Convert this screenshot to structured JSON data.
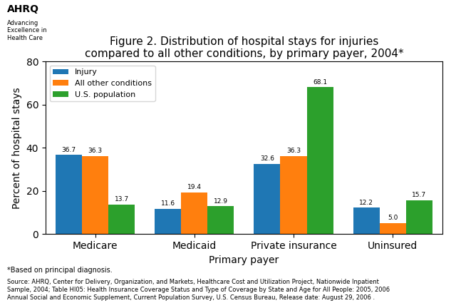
{
  "chart_data": {
    "type": "bar",
    "title": "Figure 2. Distribution of hospital stays for injuries\ncompared to all other conditions, by primary payer, 2004*",
    "categories": [
      "Medicare",
      "Medicaid",
      "Private insurance",
      "Uninsured"
    ],
    "series": [
      {
        "name": "Injury",
        "values": [
          36.7,
          11.6,
          32.6,
          12.2
        ]
      },
      {
        "name": "All other conditions",
        "values": [
          36.3,
          19.4,
          36.3,
          5.0
        ]
      },
      {
        "name": "U.S. population",
        "values": [
          13.7,
          12.9,
          68.1,
          15.7
        ]
      }
    ],
    "ylabel": "Percent of hospital stays",
    "xlabel": "Primary payer",
    "ylim": [
      0,
      80
    ],
    "yticks": [
      0,
      20,
      40,
      60,
      80
    ],
    "grid": false,
    "legend": "upper left",
    "data_labels": true,
    "annotations": [
      "AHRQ",
      "Advancing\nExcellence in\nHealth Care",
      "*Based on principal diagnosis.",
      "Source: AHRQ, Center for Delivery, Organization, and Markets, Healthcare Cost and Utilization Project, Nationwide Inpatient\nSample, 2004; Table HI05: Health Insurance Coverage Status and Type of Coverage by State and Age for All People: 2005, 2006\nAnnual Social and Economic Supplement, Current Population Survey, U.S. Census Bureau, Release date: August 29, 2006 ."
    ]
  }
}
